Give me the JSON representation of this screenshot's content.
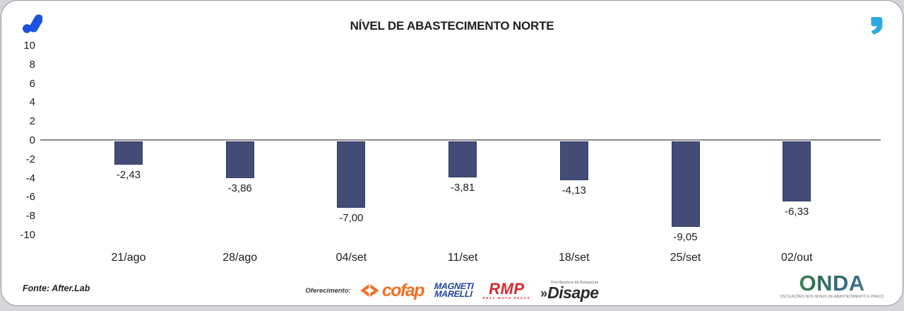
{
  "header": {
    "title": "NÍVEL DE ABASTECIMENTO NORTE"
  },
  "icons": {
    "top_left": "afterlab-logo-icon",
    "top_right": "quote-icon",
    "cofap_icon": "cofap-chevrons-icon"
  },
  "colors": {
    "bar": "#424C77",
    "bar_border": "#353F69",
    "axis_line": "#8A8A8A",
    "logo_blue": "#1D51E3",
    "quote_cyan": "#2BAAE2",
    "cofap_orange": "#F26F21",
    "magneti_blue": "#1A429B",
    "rmp_red": "#D9272E",
    "disape_dark": "#2B2B2B",
    "onda_green": "#3E7C3F"
  },
  "chart_data": {
    "type": "bar",
    "title": "NÍVEL DE ABASTECIMENTO NORTE",
    "categories": [
      "21/ago",
      "28/ago",
      "04/set",
      "11/set",
      "18/set",
      "25/set",
      "02/out"
    ],
    "values": [
      -2.43,
      -3.86,
      -7.0,
      -3.81,
      -4.13,
      -9.05,
      -6.33
    ],
    "value_labels": [
      "-2,43",
      "-3,86",
      "-7,00",
      "-3,81",
      "-4,13",
      "-9,05",
      "-6,33"
    ],
    "xlabel": "",
    "ylabel": "",
    "ylim": [
      -10,
      10
    ],
    "yticks": [
      10,
      8,
      6,
      4,
      2,
      0,
      -2,
      -4,
      -6,
      -8,
      -10
    ],
    "grid": false,
    "legend": false,
    "bar_color": "#424C77"
  },
  "footer": {
    "source": "Fonte: After.Lab",
    "offering_label": "Oferecimento:",
    "cofap": {
      "name": "cofap"
    },
    "magneti": {
      "line1": "MAGNETI",
      "line2": "MARELLI"
    },
    "rmp": {
      "name": "RMP",
      "tagline": "REAL MOTO PEÇAS"
    },
    "disape": {
      "chevrons": "»",
      "name": "Disape",
      "tagline": "Distribuidora de Autopeças"
    },
    "onda": {
      "name": "ONDA",
      "tagline": "OSCILAÇÕES NOS NÍVEIS DE ABASTECIMENTO E PREÇO"
    }
  }
}
